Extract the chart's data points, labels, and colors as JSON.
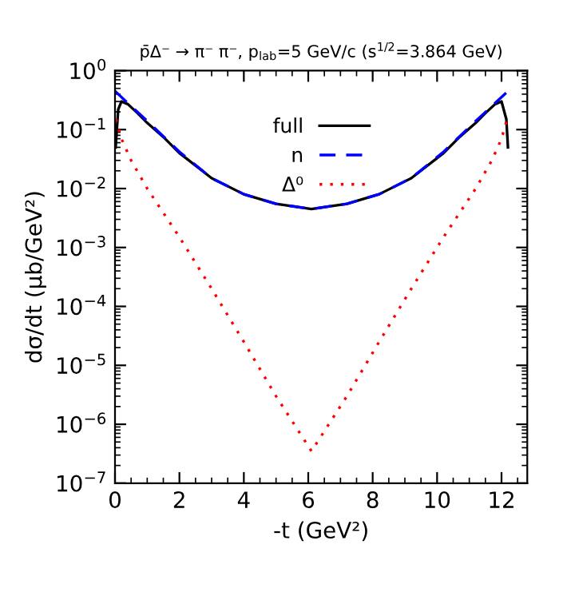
{
  "chart_data": {
    "type": "line",
    "title": "p̄Δ⁻ → π⁻ π⁻, p$_{lab}$=5 GeV/c (s$^{1/2}$=3.864 GeV)",
    "xlabel": "-t (GeV²)",
    "ylabel": "dσ/dt (μb/GeV²)",
    "log": "y",
    "xlim": [
      0,
      12.8
    ],
    "xticks": [
      0,
      2,
      4,
      6,
      8,
      10,
      12
    ],
    "ylim": [
      1e-07,
      1
    ],
    "yticks": [
      {
        "value": 1,
        "label": "10$^{0}$"
      },
      {
        "value": 0.1,
        "label": "10$^{−1}$"
      },
      {
        "value": 0.01,
        "label": "10$^{−2}$"
      },
      {
        "value": 0.001,
        "label": "10$^{−3}$"
      },
      {
        "value": 0.0001,
        "label": "10$^{−4}$"
      },
      {
        "value": 1e-05,
        "label": "10$^{−5}$"
      },
      {
        "value": 1e-06,
        "label": "10$^{−6}$"
      },
      {
        "value": 1e-07,
        "label": "10$^{−7}$"
      }
    ],
    "grid": false,
    "legend": "top",
    "marker": "none",
    "series": [
      {
        "name": "full",
        "color": "#000000",
        "line_style": "solid",
        "x": [
          0.02,
          0.1,
          0.2,
          0.4,
          0.7,
          1,
          1.5,
          2,
          3,
          4,
          5,
          6.1,
          7.2,
          8.2,
          9.2,
          10.2,
          10.7,
          11.2,
          11.5,
          11.8,
          12.0,
          12.15,
          12.2
        ],
        "values": [
          0.05,
          0.22,
          0.3,
          0.27,
          0.19,
          0.13,
          0.075,
          0.04,
          0.015,
          0.008,
          0.0055,
          0.0045,
          0.0055,
          0.008,
          0.015,
          0.04,
          0.075,
          0.13,
          0.19,
          0.27,
          0.3,
          0.15,
          0.05
        ]
      },
      {
        "name": "n",
        "color": "#0000ff",
        "line_style": "dashed",
        "x": [
          0,
          0.5,
          1,
          2,
          3,
          4,
          5,
          6.1,
          7.2,
          8.2,
          9.2,
          10.2,
          11.2,
          11.7,
          12.2
        ],
        "values": [
          0.45,
          0.25,
          0.14,
          0.042,
          0.015,
          0.008,
          0.0055,
          0.0045,
          0.0055,
          0.008,
          0.015,
          0.042,
          0.14,
          0.25,
          0.45
        ]
      },
      {
        "name": "Δ⁰",
        "color": "#ff0000",
        "line_style": "dotted",
        "x": [
          0.03,
          0.2,
          0.5,
          1,
          2,
          3,
          4,
          5,
          6.1,
          7.2,
          8.2,
          9.2,
          10.2,
          11.2,
          11.7,
          12.0,
          12.17
        ],
        "values": [
          0.15,
          0.07,
          0.03,
          0.01,
          0.0015,
          0.0002,
          2.5e-05,
          3e-06,
          3.5e-07,
          3e-06,
          2.5e-05,
          0.0002,
          0.0015,
          0.01,
          0.03,
          0.07,
          0.15
        ]
      }
    ]
  }
}
